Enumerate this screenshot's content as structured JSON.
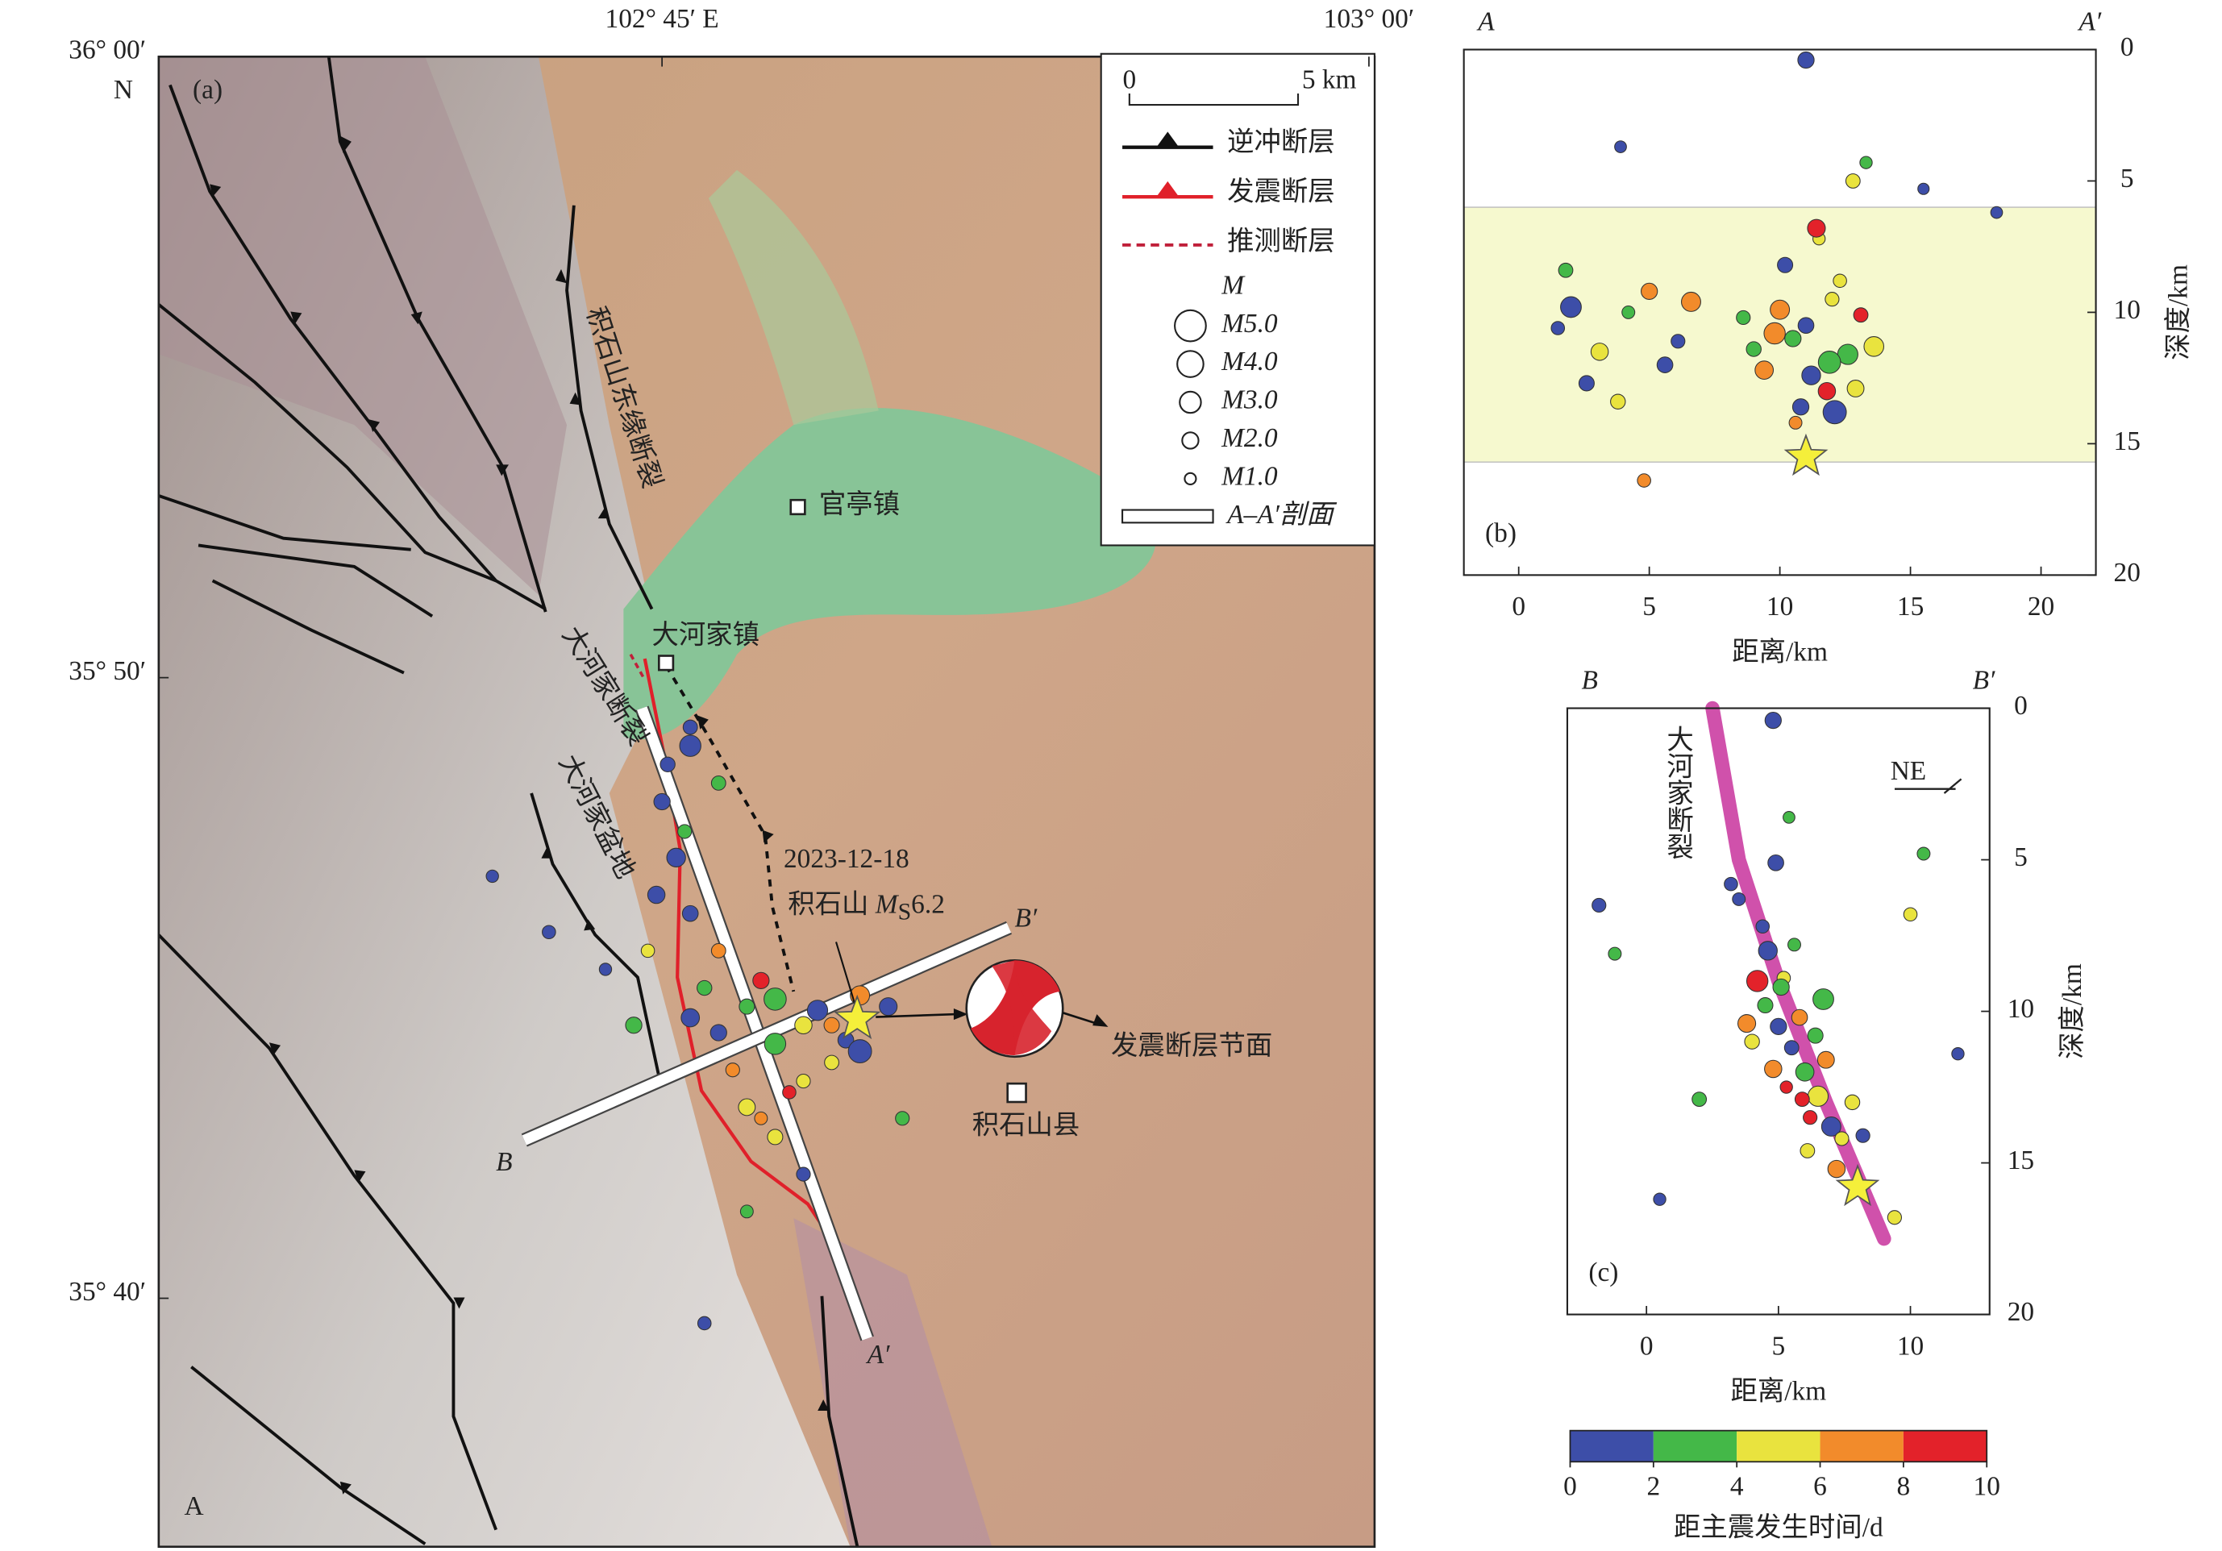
{
  "map": {
    "panel_label": "(a)",
    "corner_label": "A",
    "lonlim": [
      102.572,
      103.002
    ],
    "latlim": [
      35.6,
      36.0
    ],
    "lon_ticks": [
      {
        "value": 102.75,
        "label": "102° 45′ E"
      },
      {
        "value": 103,
        "label": "103° 00′"
      }
    ],
    "lat_ticks": [
      {
        "value": 36,
        "label": "36° 00′"
      },
      {
        "value": 35.8333,
        "label": "35° 50′"
      },
      {
        "value": 35.6667,
        "label": "35° 40′"
      }
    ],
    "lat_hemisphere": "N",
    "legend": {
      "scale_start": "0",
      "scale_end": "5 km",
      "thrust_fault": "逆冲断层",
      "seismogenic_fault": "发震断层",
      "inferred_fault": "推测断层",
      "magnitude_title": "M",
      "magnitudes": [
        {
          "value": 5,
          "label": "M5.0"
        },
        {
          "value": 4,
          "label": "M4.0"
        },
        {
          "value": 3,
          "label": "M3.0"
        },
        {
          "value": 2,
          "label": "M2.0"
        },
        {
          "value": 1,
          "label": "M1.0"
        }
      ],
      "profile": "A–A′剖面"
    },
    "places": {
      "guanting": "官亭镇",
      "dahejia": "大河家镇",
      "county": "积石山县"
    },
    "fault_names": [
      "积石山东缘断裂",
      "大河家断裂",
      "大河家盆地"
    ],
    "event": {
      "date": "2023-12-18",
      "name": "积石山",
      "mag_symbol": "M",
      "mag_subscript": "S",
      "magnitude": 6.2,
      "lon": 102.819,
      "lat": 35.7416,
      "color": "#f5ef3a"
    },
    "nodal_plane_label": "发震断层节面",
    "profile_ends": [
      "A′",
      "B",
      "B′"
    ],
    "epicenters": {
      "lon": [
        102.76,
        102.77,
        102.78,
        102.79,
        102.8,
        102.81,
        102.82,
        102.775,
        102.785,
        102.795,
        102.805,
        102.815,
        102.765,
        102.79,
        102.8,
        102.78,
        102.81,
        102.77,
        102.82,
        102.83,
        102.76,
        102.755,
        102.75,
        102.752,
        102.758,
        102.748,
        102.76,
        102.77,
        102.745,
        102.74,
        102.79,
        102.8,
        102.785,
        102.73,
        102.71,
        102.76,
        102.835,
        102.78,
        102.69,
        102.765
      ],
      "lat": [
        35.742,
        35.738,
        35.745,
        35.735,
        35.74,
        35.73,
        35.748,
        35.728,
        35.752,
        35.722,
        35.744,
        35.736,
        35.75,
        35.747,
        35.725,
        35.718,
        35.74,
        35.76,
        35.733,
        35.745,
        35.77,
        35.785,
        35.8,
        35.81,
        35.792,
        35.775,
        35.815,
        35.805,
        35.76,
        35.74,
        35.71,
        35.7,
        35.715,
        35.755,
        35.765,
        35.82,
        35.715,
        35.69,
        35.78,
        35.66
      ],
      "t": [
        0.3,
        1.2,
        2.4,
        3.6,
        4.8,
        5.5,
        6.6,
        7.7,
        8.8,
        9.2,
        0.8,
        1.9,
        2.7,
        3.1,
        4.4,
        5.9,
        6.1,
        7.2,
        0.5,
        1.5,
        0.6,
        1.4,
        0.2,
        0.9,
        2.6,
        1.1,
        0.4,
        3.3,
        4.6,
        2.2,
        5.2,
        1.8,
        6.9,
        0.7,
        1.6,
        0.1,
        3.9,
        2.8,
        0.5,
        1.3
      ],
      "m": [
        2.4,
        2.0,
        1.8,
        3.0,
        2.2,
        1.6,
        2.6,
        1.5,
        2.0,
        1.4,
        2.8,
        1.9,
        1.7,
        3.2,
        1.5,
        2.1,
        1.8,
        1.6,
        3.4,
        2.3,
        1.9,
        2.5,
        2.0,
        1.7,
        1.5,
        2.2,
        3.0,
        1.6,
        1.4,
        2.0,
        1.8,
        1.5,
        1.3,
        1.2,
        1.4,
        1.6,
        1.5,
        1.3,
        1.2,
        1.4
      ]
    }
  },
  "chart_data": [
    {
      "type": "scatter",
      "panel_label": "(b)",
      "profile_start": "A",
      "profile_end": "A′",
      "xlabel": "距离/km",
      "ylabel": "深度/km",
      "xlim": [
        -2.1,
        22.1
      ],
      "ylim": [
        0,
        20
      ],
      "y_inverted": true,
      "xticks": [
        0,
        5,
        10,
        15,
        20
      ],
      "yticks": [
        0,
        5,
        10,
        15,
        20
      ],
      "highlight": [
        6,
        15.7
      ],
      "highlight_color": "#f6f9cf",
      "x": [
        11.2,
        10.5,
        12.0,
        9.8,
        11.8,
        10.2,
        12.6,
        11.5,
        9.4,
        13.1,
        10.8,
        11.9,
        12.3,
        10.0,
        11.0,
        9.0,
        12.9,
        10.6,
        11.4,
        12.1,
        8.6,
        13.6,
        2.0,
        1.8,
        3.1,
        2.6,
        4.2,
        5.0,
        6.1,
        3.8,
        1.5,
        6.6,
        5.6,
        13.3,
        3.9,
        12.8,
        11.0,
        15.5,
        18.3,
        4.8
      ],
      "y": [
        12.4,
        11.0,
        9.5,
        10.8,
        13.0,
        8.2,
        11.6,
        7.2,
        12.2,
        10.1,
        13.6,
        11.9,
        8.8,
        9.9,
        10.5,
        11.4,
        12.9,
        14.2,
        6.8,
        13.8,
        10.2,
        11.3,
        9.8,
        8.4,
        11.5,
        12.7,
        10.0,
        9.2,
        11.1,
        13.4,
        10.6,
        9.6,
        12.0,
        4.3,
        3.7,
        5.0,
        0.4,
        5.3,
        6.2,
        16.4
      ],
      "t": [
        1,
        3,
        5,
        7,
        9,
        0.5,
        2.5,
        4.5,
        6.5,
        8.5,
        1.5,
        3.5,
        5.5,
        7.5,
        0.8,
        2.2,
        4.2,
        6.2,
        8.2,
        1.2,
        3.2,
        5.2,
        1,
        3,
        5,
        0.6,
        2.6,
        7,
        1.4,
        4.4,
        0.4,
        6.4,
        1.8,
        3.8,
        0.2,
        5.8,
        1.1,
        0.3,
        0.9,
        7.7
      ],
      "m": [
        2.5,
        2.0,
        1.5,
        3.0,
        2.2,
        1.8,
        2.8,
        1.2,
        2.4,
        1.6,
        2.0,
        3.2,
        1.4,
        2.6,
        1.9,
        1.7,
        2.1,
        1.3,
        2.3,
        3.4,
        1.5,
        2.7,
        2.9,
        1.6,
        2.2,
        1.8,
        1.3,
        2.0,
        1.5,
        1.7,
        1.4,
        2.6,
        1.9,
        1.2,
        1.1,
        1.6,
        2.0,
        1.0,
        1.1,
        1.4
      ],
      "mainshock": {
        "x": 11,
        "y": 15.5
      }
    },
    {
      "type": "scatter",
      "panel_label": "(c)",
      "profile_start": "B",
      "profile_end": "B′",
      "xlabel": "距离/km",
      "ylabel": "深度/km",
      "xlim": [
        -3,
        13
      ],
      "ylim": [
        0,
        20
      ],
      "y_inverted": true,
      "xticks": [
        0,
        5,
        10
      ],
      "yticks": [
        0,
        5,
        10,
        15,
        20
      ],
      "direction": "NE",
      "fault_trace": {
        "label": "大河家断裂",
        "color": "#c8329c",
        "x": [
          2.5,
          3.5,
          5,
          6.8,
          9
        ],
        "y": [
          0,
          5,
          9,
          13,
          17.5
        ]
      },
      "x": [
        5.0,
        5.5,
        6.0,
        4.5,
        6.5,
        5.2,
        4.8,
        5.8,
        6.2,
        4.2,
        7.0,
        5.6,
        4.0,
        6.8,
        5.3,
        4.6,
        6.4,
        7.4,
        3.8,
        5.9,
        4.4,
        6.7,
        7.8,
        3.5,
        5.1,
        6.1,
        8.2,
        4.9,
        5.4,
        7.2,
        3.2,
        -1.8,
        -1.2,
        2.0,
        0.5,
        10.0,
        10.5,
        11.8,
        4.8,
        9.4
      ],
      "y": [
        10.5,
        11.2,
        12.0,
        9.8,
        12.8,
        8.9,
        11.9,
        10.2,
        13.5,
        9.0,
        13.8,
        7.8,
        11.0,
        11.6,
        12.5,
        8.0,
        10.8,
        14.2,
        10.4,
        12.9,
        7.2,
        9.6,
        13.0,
        6.3,
        9.2,
        14.6,
        14.1,
        5.1,
        3.6,
        15.2,
        5.8,
        6.5,
        8.1,
        12.9,
        16.2,
        6.8,
        4.8,
        11.4,
        0.4,
        16.8
      ],
      "t": [
        0.5,
        1.5,
        2.5,
        3.5,
        4.5,
        5.5,
        6.5,
        7.5,
        8.5,
        9.5,
        1,
        3,
        5,
        7,
        9,
        0.2,
        2.2,
        4.2,
        6.2,
        8.2,
        0.7,
        2.7,
        4.7,
        1.7,
        3.7,
        5.7,
        0.3,
        1.3,
        3.3,
        6.8,
        0.9,
        1.1,
        2.9,
        3.9,
        0.4,
        5.1,
        2.1,
        0.6,
        1.6,
        4.1
      ],
      "m": [
        2.0,
        1.6,
        2.4,
        1.8,
        2.8,
        1.4,
        2.2,
        1.9,
        1.5,
        3.0,
        2.6,
        1.3,
        1.7,
        2.1,
        1.2,
        2.5,
        1.8,
        1.5,
        2.3,
        1.6,
        1.4,
        2.9,
        1.7,
        1.3,
        2.0,
        1.6,
        1.5,
        1.9,
        1.1,
        2.2,
        1.4,
        1.5,
        1.3,
        1.6,
        1.2,
        1.4,
        1.3,
        1.2,
        2.0,
        1.5
      ],
      "mainshock": {
        "x": 8,
        "y": 15.8
      }
    }
  ],
  "colorbar": {
    "ticks": [
      0,
      2,
      4,
      6,
      8,
      10
    ],
    "colors": [
      "#3d4ea8",
      "#44b848",
      "#e9e33e",
      "#f28b2b",
      "#e3222a"
    ],
    "label": "距主震发生时间/d"
  }
}
